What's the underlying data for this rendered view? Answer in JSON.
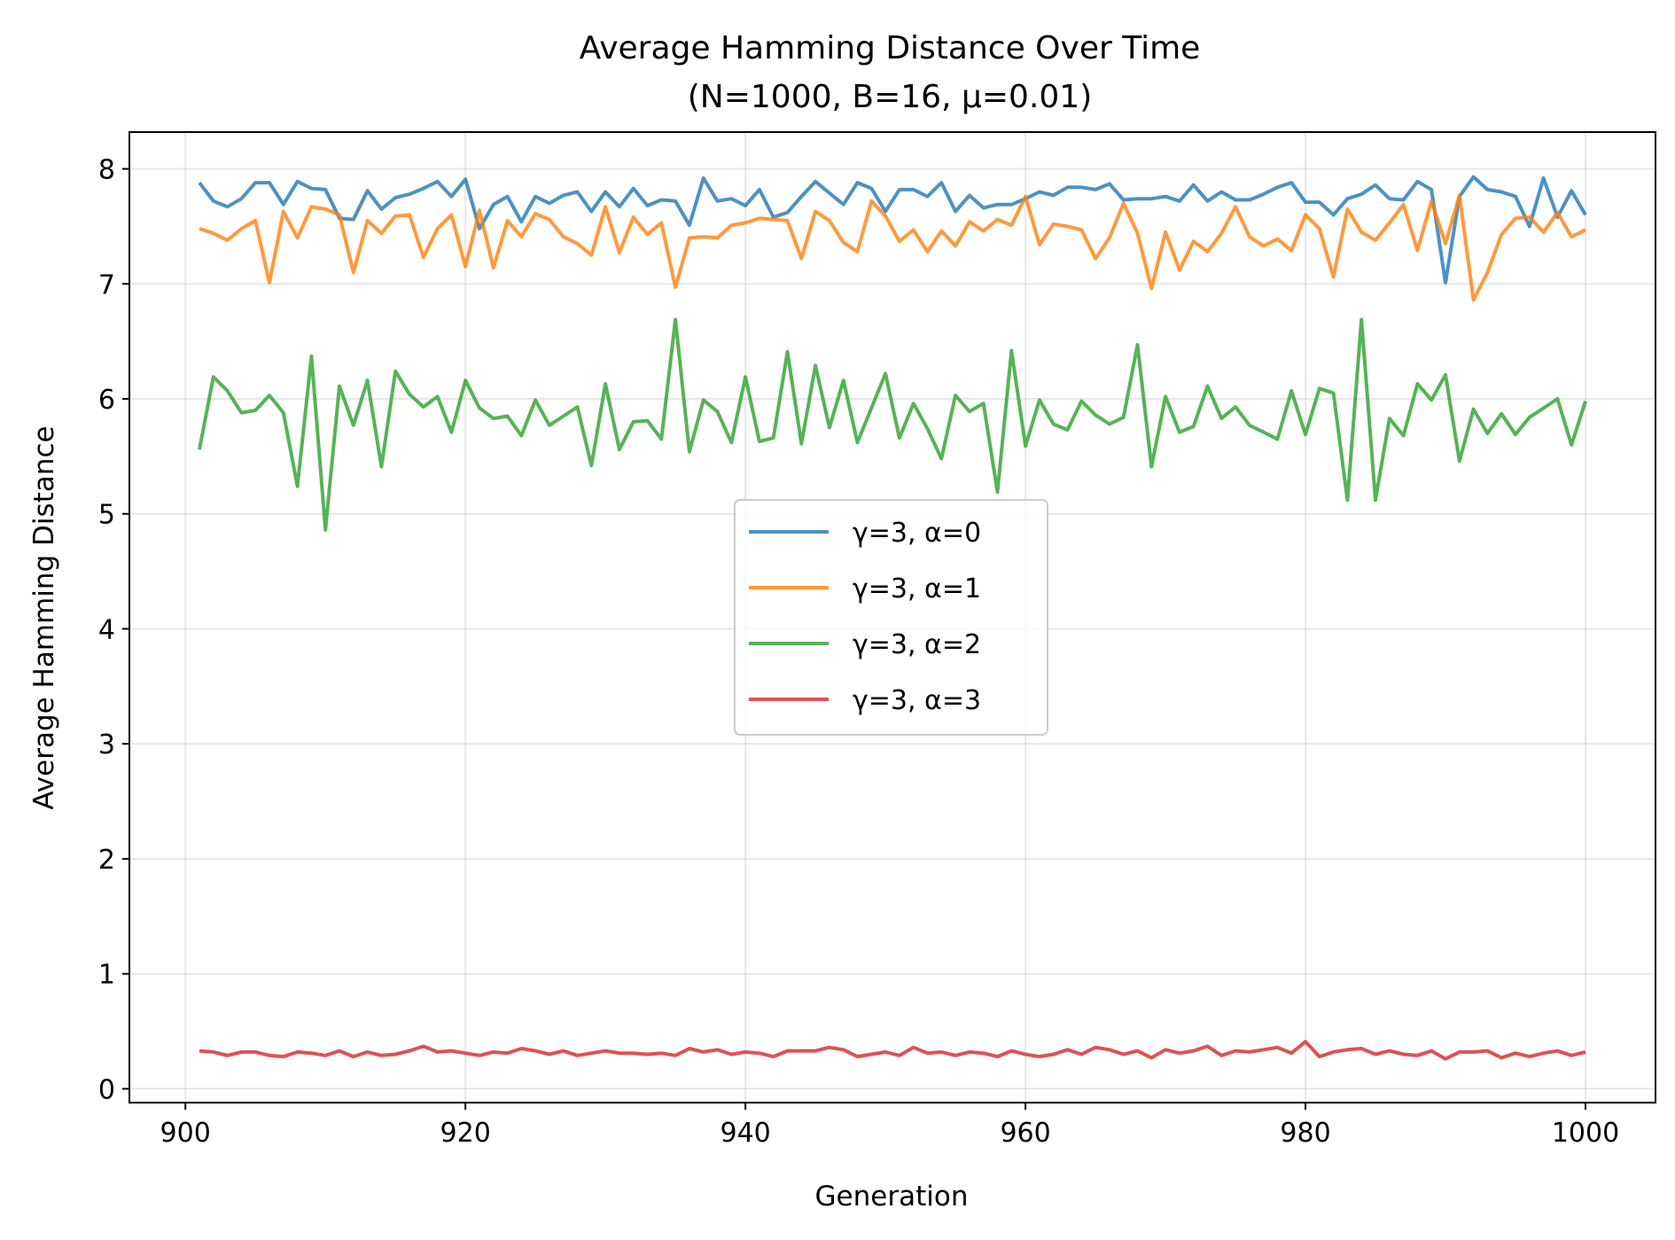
{
  "chart_data": {
    "type": "line",
    "title": "Average Hamming Distance Over Time",
    "subtitle": "(N=1000, B=16, μ=0.01)",
    "xlabel": "Generation",
    "ylabel": "Average Hamming Distance",
    "xlim": [
      896,
      1005
    ],
    "ylim": [
      -0.12,
      8.32
    ],
    "xticks": [
      900,
      920,
      940,
      960,
      980,
      1000
    ],
    "yticks": [
      0,
      1,
      2,
      3,
      4,
      5,
      6,
      7,
      8
    ],
    "grid": true,
    "legend_position": "center",
    "x_start": 901,
    "series": [
      {
        "name": "γ=3, α=0",
        "color": "#1f77b4",
        "values": [
          7.88,
          7.72,
          7.67,
          7.74,
          7.88,
          7.88,
          7.69,
          7.89,
          7.83,
          7.82,
          7.57,
          7.56,
          7.81,
          7.65,
          7.75,
          7.78,
          7.83,
          7.89,
          7.76,
          7.91,
          7.48,
          7.69,
          7.76,
          7.54,
          7.76,
          7.7,
          7.77,
          7.8,
          7.63,
          7.8,
          7.67,
          7.83,
          7.68,
          7.73,
          7.72,
          7.51,
          7.92,
          7.72,
          7.74,
          7.68,
          7.82,
          7.58,
          7.62,
          7.76,
          7.89,
          7.79,
          7.69,
          7.88,
          7.83,
          7.63,
          7.82,
          7.82,
          7.76,
          7.88,
          7.63,
          7.77,
          7.66,
          7.69,
          7.69,
          7.74,
          7.8,
          7.77,
          7.84,
          7.84,
          7.82,
          7.87,
          7.73,
          7.74,
          7.74,
          7.76,
          7.72,
          7.86,
          7.72,
          7.8,
          7.73,
          7.73,
          7.78,
          7.84,
          7.88,
          7.71,
          7.71,
          7.6,
          7.74,
          7.78,
          7.86,
          7.74,
          7.73,
          7.89,
          7.82,
          7.01,
          7.76,
          7.93,
          7.82,
          7.8,
          7.76,
          7.5,
          7.92,
          7.58,
          7.81,
          7.6
        ]
      },
      {
        "name": "γ=3, α=1",
        "color": "#ff7f0e",
        "values": [
          7.48,
          7.44,
          7.38,
          7.48,
          7.55,
          7.01,
          7.63,
          7.4,
          7.67,
          7.65,
          7.6,
          7.1,
          7.55,
          7.44,
          7.59,
          7.6,
          7.23,
          7.48,
          7.6,
          7.15,
          7.64,
          7.14,
          7.55,
          7.41,
          7.61,
          7.56,
          7.41,
          7.35,
          7.25,
          7.67,
          7.27,
          7.58,
          7.43,
          7.53,
          6.97,
          7.4,
          7.41,
          7.4,
          7.51,
          7.53,
          7.57,
          7.56,
          7.55,
          7.22,
          7.63,
          7.55,
          7.36,
          7.28,
          7.72,
          7.59,
          7.37,
          7.47,
          7.28,
          7.46,
          7.33,
          7.54,
          7.46,
          7.56,
          7.51,
          7.76,
          7.34,
          7.52,
          7.5,
          7.47,
          7.22,
          7.4,
          7.7,
          7.44,
          6.96,
          7.45,
          7.12,
          7.37,
          7.28,
          7.44,
          7.67,
          7.41,
          7.33,
          7.39,
          7.29,
          7.6,
          7.48,
          7.06,
          7.65,
          7.45,
          7.38,
          7.53,
          7.69,
          7.29,
          7.72,
          7.35,
          7.77,
          6.86,
          7.1,
          7.43,
          7.57,
          7.58,
          7.45,
          7.62,
          7.41,
          7.47
        ]
      },
      {
        "name": "γ=3, α=2",
        "color": "#2ca02c",
        "values": [
          5.56,
          6.19,
          6.07,
          5.88,
          5.9,
          6.03,
          5.88,
          5.24,
          6.37,
          4.86,
          6.11,
          5.77,
          6.16,
          5.41,
          6.24,
          6.04,
          5.93,
          6.02,
          5.71,
          6.16,
          5.92,
          5.83,
          5.85,
          5.68,
          5.99,
          5.77,
          5.85,
          5.93,
          5.42,
          6.13,
          5.56,
          5.8,
          5.81,
          5.65,
          6.69,
          5.54,
          5.99,
          5.89,
          5.62,
          6.19,
          5.63,
          5.66,
          6.41,
          5.61,
          6.29,
          5.75,
          6.16,
          5.62,
          5.92,
          6.22,
          5.66,
          5.96,
          5.74,
          5.48,
          6.03,
          5.89,
          5.96,
          5.19,
          6.42,
          5.59,
          5.99,
          5.78,
          5.73,
          5.98,
          5.86,
          5.78,
          5.84,
          6.47,
          5.41,
          6.02,
          5.71,
          5.76,
          6.11,
          5.83,
          5.93,
          5.77,
          5.71,
          5.65,
          6.07,
          5.69,
          6.09,
          6.05,
          5.12,
          6.69,
          5.12,
          5.83,
          5.68,
          6.13,
          5.99,
          6.21,
          5.46,
          5.91,
          5.7,
          5.87,
          5.69,
          5.84,
          5.92,
          6.0,
          5.6,
          5.98
        ]
      },
      {
        "name": "γ=3, α=3",
        "color": "#d62728",
        "values": [
          0.33,
          0.32,
          0.29,
          0.32,
          0.32,
          0.29,
          0.28,
          0.32,
          0.31,
          0.29,
          0.33,
          0.28,
          0.32,
          0.29,
          0.3,
          0.33,
          0.37,
          0.32,
          0.33,
          0.31,
          0.29,
          0.32,
          0.31,
          0.35,
          0.33,
          0.3,
          0.33,
          0.29,
          0.31,
          0.33,
          0.31,
          0.31,
          0.3,
          0.31,
          0.29,
          0.35,
          0.32,
          0.34,
          0.3,
          0.32,
          0.31,
          0.28,
          0.33,
          0.33,
          0.33,
          0.36,
          0.34,
          0.28,
          0.3,
          0.32,
          0.29,
          0.36,
          0.31,
          0.32,
          0.29,
          0.32,
          0.31,
          0.28,
          0.33,
          0.3,
          0.28,
          0.3,
          0.34,
          0.3,
          0.36,
          0.34,
          0.3,
          0.33,
          0.27,
          0.34,
          0.31,
          0.33,
          0.37,
          0.29,
          0.33,
          0.32,
          0.34,
          0.36,
          0.31,
          0.41,
          0.28,
          0.32,
          0.34,
          0.35,
          0.3,
          0.33,
          0.3,
          0.29,
          0.33,
          0.26,
          0.32,
          0.32,
          0.33,
          0.27,
          0.31,
          0.28,
          0.31,
          0.33,
          0.29,
          0.32
        ]
      }
    ]
  }
}
